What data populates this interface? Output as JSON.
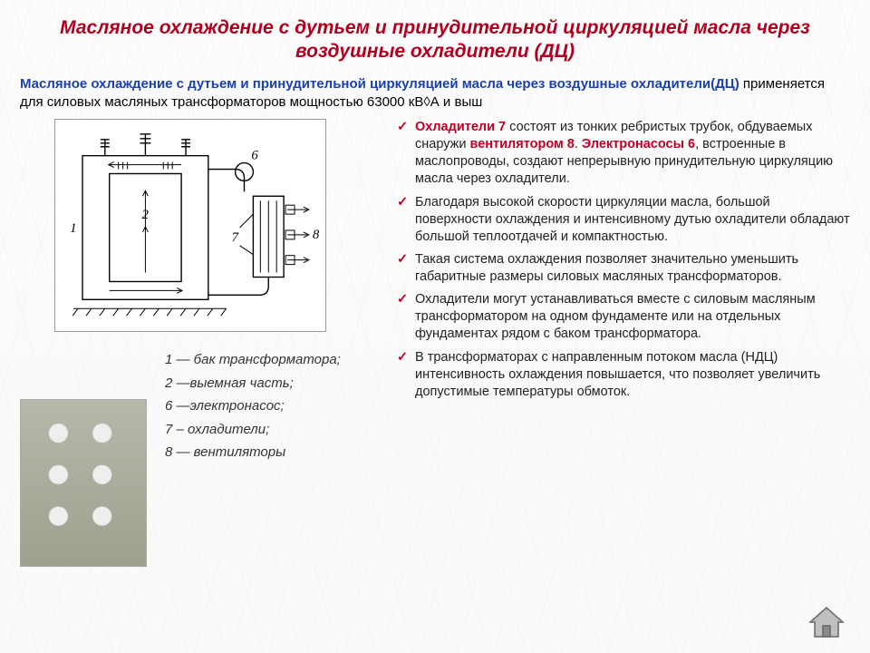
{
  "colors": {
    "title": "#b00020",
    "lead": "#1a3fb0",
    "body": "#222222",
    "bullet_check": "#c00028",
    "bullet_highlight": "#c00028",
    "diagram_stroke": "#000000",
    "home_fill": "#b8b8b8",
    "home_stroke": "#666666"
  },
  "fonts": {
    "title_size_pt": 16,
    "intro_size_pt": 11,
    "bullet_size_pt": 11,
    "legend_size_pt": 11
  },
  "title": "Масляное охлаждение с дутьем и принудительной циркуляцией масла через воздушные охладители (ДЦ)",
  "intro": {
    "lead": "Масляное охлаждение с дутьем и принудительной циркуляцией масла через воздушные охладители(ДЦ)",
    "rest": "  применяется для силовых масляных трансформаторов мощностью 63000 кВ◊А и выш"
  },
  "diagram_labels": {
    "l1": "1",
    "l2": "2",
    "l6": "6",
    "l7": "7",
    "l8": "8"
  },
  "legend": {
    "i1": "1 — бак трансформатора;",
    "i2": "2 —выемная часть;",
    "i6": "6 —электронасос;",
    "i7": "7 – охладители;",
    "i8": "8 — вентиляторы"
  },
  "bullets": [
    {
      "pre": "",
      "hl1": "Охладители 7",
      "mid1": " состоят из тонких ребристых трубок, обдуваемых снаружи ",
      "hl2": "вентилятором 8",
      "mid2": ". ",
      "hl3": "Электронасосы 6",
      "tail": ", встроенные в маслопроводы, создают непрерывную принудительную циркуляцию масла через охладители."
    },
    {
      "text": "Благодаря высокой скорости циркуляции масла, большой поверхности охлаждения и интенсивному дутью охладители обладают большой теплоотдачей и компактностью."
    },
    {
      "text": "Такая система охлаждения позволяет значительно уменьшить габаритные размеры силовых масляных трансформаторов."
    },
    {
      "text": "Охладители могут устанавливаться вместе с силовым масляным трансформатором на одном фундаменте или на отдельных фундаментах рядом с баком трансформатора."
    },
    {
      "text": "В трансформаторах с направленным потоком масла (НДЦ) интенсивность охлаждения повышается, что позволяет увеличить допустимые температуры обмоток."
    }
  ]
}
